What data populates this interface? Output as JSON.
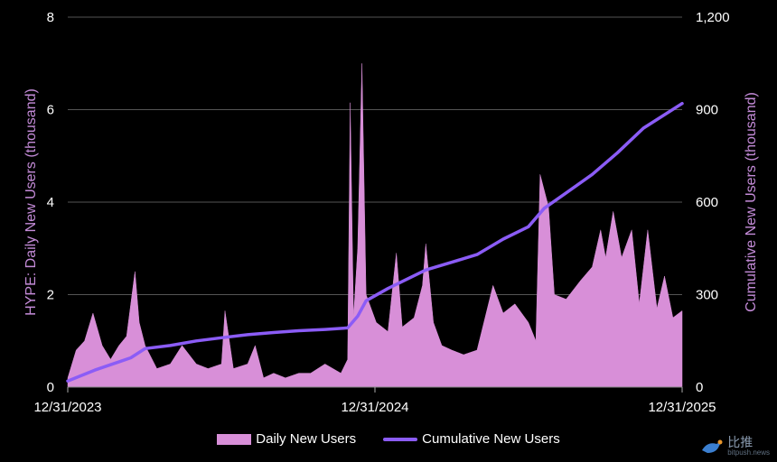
{
  "chart_data": {
    "type": "area+line",
    "title": "",
    "xlabel": "",
    "x_ticks": [
      "12/31/2023",
      "12/31/2024",
      "12/31/2025"
    ],
    "x_range": [
      "2023-12-31",
      "2025-12-31"
    ],
    "left_axis": {
      "label": "HYPE: Daily New Users (thousand)",
      "ylim": [
        0,
        8
      ],
      "ticks": [
        "0",
        "2",
        "4",
        "6",
        "8"
      ]
    },
    "right_axis": {
      "label": "Cumulative New Users (thousand)",
      "ylim": [
        0,
        1200
      ],
      "ticks": [
        "0",
        "300",
        "600",
        "900",
        "1,200"
      ]
    },
    "grid": true,
    "legend_position": "bottom",
    "series": [
      {
        "name": "Daily New Users",
        "type": "area",
        "axis": "left",
        "color": "#d88fd8",
        "points": [
          [
            "2023-12-31",
            0.2
          ],
          [
            "2024-01-10",
            0.8
          ],
          [
            "2024-01-20",
            1.0
          ],
          [
            "2024-01-30",
            1.6
          ],
          [
            "2024-02-10",
            0.9
          ],
          [
            "2024-02-20",
            0.6
          ],
          [
            "2024-03-01",
            0.9
          ],
          [
            "2024-03-10",
            1.1
          ],
          [
            "2024-03-20",
            2.5
          ],
          [
            "2024-03-25",
            1.4
          ],
          [
            "2024-04-01",
            0.9
          ],
          [
            "2024-04-15",
            0.4
          ],
          [
            "2024-05-01",
            0.5
          ],
          [
            "2024-05-15",
            0.9
          ],
          [
            "2024-06-01",
            0.5
          ],
          [
            "2024-06-15",
            0.4
          ],
          [
            "2024-07-01",
            0.5
          ],
          [
            "2024-07-05",
            1.65
          ],
          [
            "2024-07-15",
            0.4
          ],
          [
            "2024-08-01",
            0.5
          ],
          [
            "2024-08-10",
            0.9
          ],
          [
            "2024-08-20",
            0.2
          ],
          [
            "2024-09-01",
            0.3
          ],
          [
            "2024-09-15",
            0.2
          ],
          [
            "2024-10-01",
            0.3
          ],
          [
            "2024-10-15",
            0.3
          ],
          [
            "2024-11-01",
            0.5
          ],
          [
            "2024-11-20",
            0.3
          ],
          [
            "2024-11-28",
            0.6
          ],
          [
            "2024-12-01",
            6.15
          ],
          [
            "2024-12-05",
            1.5
          ],
          [
            "2024-12-10",
            3.0
          ],
          [
            "2024-12-15",
            7.0
          ],
          [
            "2024-12-20",
            2.0
          ],
          [
            "2025-01-01",
            1.4
          ],
          [
            "2025-01-15",
            1.2
          ],
          [
            "2025-01-25",
            2.9
          ],
          [
            "2025-02-01",
            1.3
          ],
          [
            "2025-02-15",
            1.5
          ],
          [
            "2025-02-25",
            2.2
          ],
          [
            "2025-03-01",
            3.1
          ],
          [
            "2025-03-10",
            1.4
          ],
          [
            "2025-03-20",
            0.9
          ],
          [
            "2025-04-01",
            0.8
          ],
          [
            "2025-04-15",
            0.7
          ],
          [
            "2025-05-01",
            0.8
          ],
          [
            "2025-05-20",
            2.2
          ],
          [
            "2025-06-01",
            1.6
          ],
          [
            "2025-06-15",
            1.8
          ],
          [
            "2025-07-01",
            1.4
          ],
          [
            "2025-07-10",
            1.0
          ],
          [
            "2025-07-15",
            4.6
          ],
          [
            "2025-07-25",
            3.9
          ],
          [
            "2025-08-01",
            2.0
          ],
          [
            "2025-08-15",
            1.9
          ],
          [
            "2025-09-01",
            2.3
          ],
          [
            "2025-09-15",
            2.6
          ],
          [
            "2025-09-25",
            3.4
          ],
          [
            "2025-10-01",
            2.8
          ],
          [
            "2025-10-10",
            3.8
          ],
          [
            "2025-10-20",
            2.8
          ],
          [
            "2025-11-01",
            3.4
          ],
          [
            "2025-11-10",
            1.8
          ],
          [
            "2025-11-20",
            3.4
          ],
          [
            "2025-12-01",
            1.7
          ],
          [
            "2025-12-10",
            2.4
          ],
          [
            "2025-12-20",
            1.5
          ],
          [
            "2025-12-31",
            1.65
          ]
        ]
      },
      {
        "name": "Cumulative New Users",
        "type": "line",
        "axis": "right",
        "color": "#8b5cf6",
        "points": [
          [
            "2023-12-31",
            20
          ],
          [
            "2024-02-01",
            55
          ],
          [
            "2024-03-15",
            95
          ],
          [
            "2024-04-01",
            125
          ],
          [
            "2024-05-01",
            135
          ],
          [
            "2024-06-01",
            150
          ],
          [
            "2024-07-01",
            160
          ],
          [
            "2024-08-01",
            170
          ],
          [
            "2024-09-01",
            177
          ],
          [
            "2024-10-01",
            183
          ],
          [
            "2024-11-01",
            187
          ],
          [
            "2024-11-28",
            192
          ],
          [
            "2024-12-10",
            230
          ],
          [
            "2024-12-20",
            280
          ],
          [
            "2025-01-15",
            320
          ],
          [
            "2025-03-01",
            380
          ],
          [
            "2025-04-01",
            405
          ],
          [
            "2025-05-01",
            430
          ],
          [
            "2025-06-01",
            480
          ],
          [
            "2025-07-01",
            520
          ],
          [
            "2025-07-20",
            580
          ],
          [
            "2025-08-15",
            630
          ],
          [
            "2025-09-15",
            690
          ],
          [
            "2025-10-15",
            760
          ],
          [
            "2025-11-15",
            840
          ],
          [
            "2025-12-31",
            920
          ]
        ]
      }
    ]
  },
  "legend": {
    "daily_label": "Daily New Users",
    "cumulative_label": "Cumulative New Users"
  },
  "watermark": {
    "text_cn": "比推",
    "text_en": "bitpush.news"
  },
  "colors": {
    "area": "#d88fd8",
    "line": "#8b5cf6",
    "grid": "#555555",
    "axis_title": "#c48bd8"
  }
}
